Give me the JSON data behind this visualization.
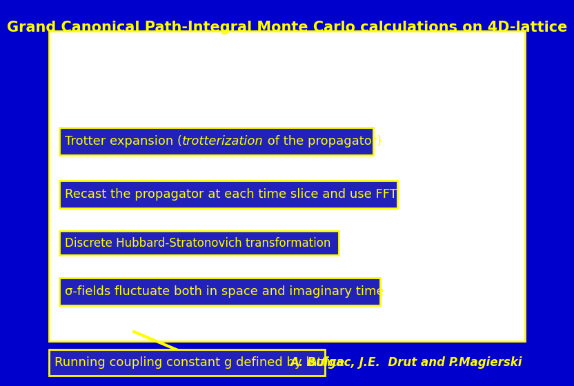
{
  "title": "Grand Canonical Path-Integral Monte Carlo calculations on 4D-lattice",
  "title_color": "#FFFF00",
  "title_fontsize": 15,
  "bg_color": "#0000CC",
  "main_box_bg": "#FFFFFF",
  "main_box_border": "#FFFF00",
  "bullet_box_bg": "#2222BB",
  "bullet_box_border": "#FFFF00",
  "bullet_text_color": "#FFFF00",
  "bullet_fontsize": 13,
  "bullet1_pre": "Trotter expansion (",
  "bullet1_italic": "trotterization",
  "bullet1_post": " of the propagator)",
  "bullet2": "Recast the propagator at each time slice and use FFT",
  "bullet3": "Discrete Hubbard-Stratonovich transformation",
  "bullet4": "σ-fields fluctuate both in space and imaginary time",
  "bottom_box_bg": "#2222BB",
  "bottom_box_border": "#FFFF00",
  "bottom_text": "Running coupling constant g defined by lattice",
  "bottom_text_color": "#FFFF00",
  "author_text": "A. Bulgac, J.E.  Drut and P.Magierski",
  "author_color": "#FFFF00",
  "author_fontsize": 12,
  "arrow_color": "#FFFF00",
  "arrow_lw": 3
}
